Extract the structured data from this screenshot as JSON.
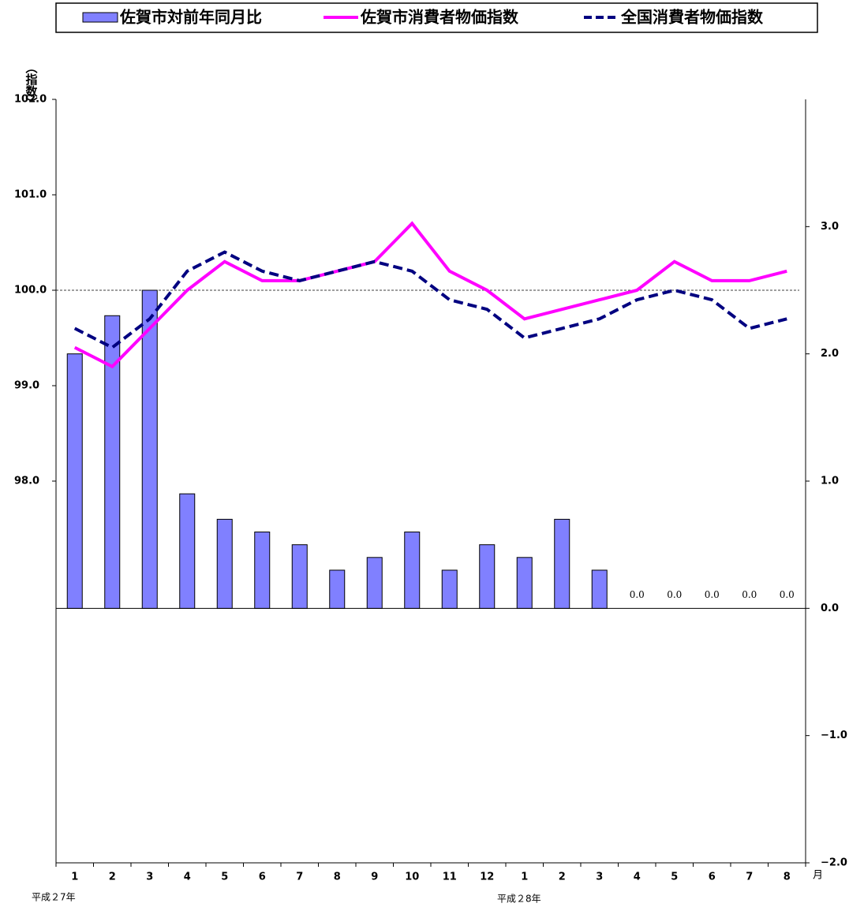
{
  "chart_data": {
    "type": "bar_line",
    "y_axis_label": "（指数）",
    "x_unit_label": "月",
    "year_labels": [
      "平成２7年",
      "平成２8年"
    ],
    "categories": [
      "1",
      "2",
      "3",
      "4",
      "5",
      "6",
      "7",
      "8",
      "9",
      "10",
      "11",
      "12",
      "1",
      "2",
      "3",
      "4",
      "5",
      "6",
      "7",
      "8"
    ],
    "ylim": [
      94,
      102
    ],
    "yticks": [
      {
        "value": 98,
        "label": "98.0"
      },
      {
        "value": 99,
        "label": "99.0"
      },
      {
        "value": 100,
        "label": "100.0"
      },
      {
        "value": 101,
        "label": "101.0"
      },
      {
        "value": 102,
        "label": "102.0"
      }
    ],
    "y2lim": [
      -2,
      4
    ],
    "y2ticks": [
      {
        "value": -2,
        "label": "−2.0"
      },
      {
        "value": -1,
        "label": "−1.0"
      },
      {
        "value": 0,
        "label": "0.0"
      },
      {
        "value": 1,
        "label": "1.0"
      },
      {
        "value": 2,
        "label": "2.0"
      },
      {
        "value": 3,
        "label": "3.0"
      }
    ],
    "reference_line": 100,
    "series": [
      {
        "name": "佐賀市対前年同月比",
        "kind": "bar",
        "axis": "y2",
        "color": "#8080ff",
        "values": [
          2.0,
          2.3,
          2.5,
          0.9,
          0.7,
          0.6,
          0.5,
          0.3,
          0.4,
          0.6,
          0.3,
          0.5,
          0.4,
          0.7,
          0.3,
          0,
          0,
          0,
          0,
          0
        ],
        "value_labels": [
          null,
          null,
          null,
          null,
          null,
          null,
          null,
          null,
          null,
          null,
          null,
          null,
          null,
          null,
          null,
          "0.0",
          "0.0",
          "0.0",
          "0.0",
          "0.0"
        ]
      },
      {
        "name": "佐賀市消費者物価指数",
        "kind": "line",
        "color": "#ff00ff",
        "dashed": false,
        "values": [
          99.4,
          99.2,
          99.6,
          100.0,
          100.3,
          100.1,
          100.1,
          100.2,
          100.3,
          100.7,
          100.2,
          100.0,
          99.7,
          99.8,
          99.9,
          100.0,
          100.3,
          100.1,
          100.1,
          100.2
        ]
      },
      {
        "name": "全国消費者物価指数",
        "kind": "line",
        "color": "#000080",
        "dashed": true,
        "values": [
          99.6,
          99.4,
          99.7,
          100.2,
          100.4,
          100.2,
          100.1,
          100.2,
          100.3,
          100.2,
          99.9,
          99.8,
          99.5,
          99.6,
          99.7,
          99.9,
          100.0,
          99.9,
          99.6,
          99.7
        ]
      }
    ]
  }
}
